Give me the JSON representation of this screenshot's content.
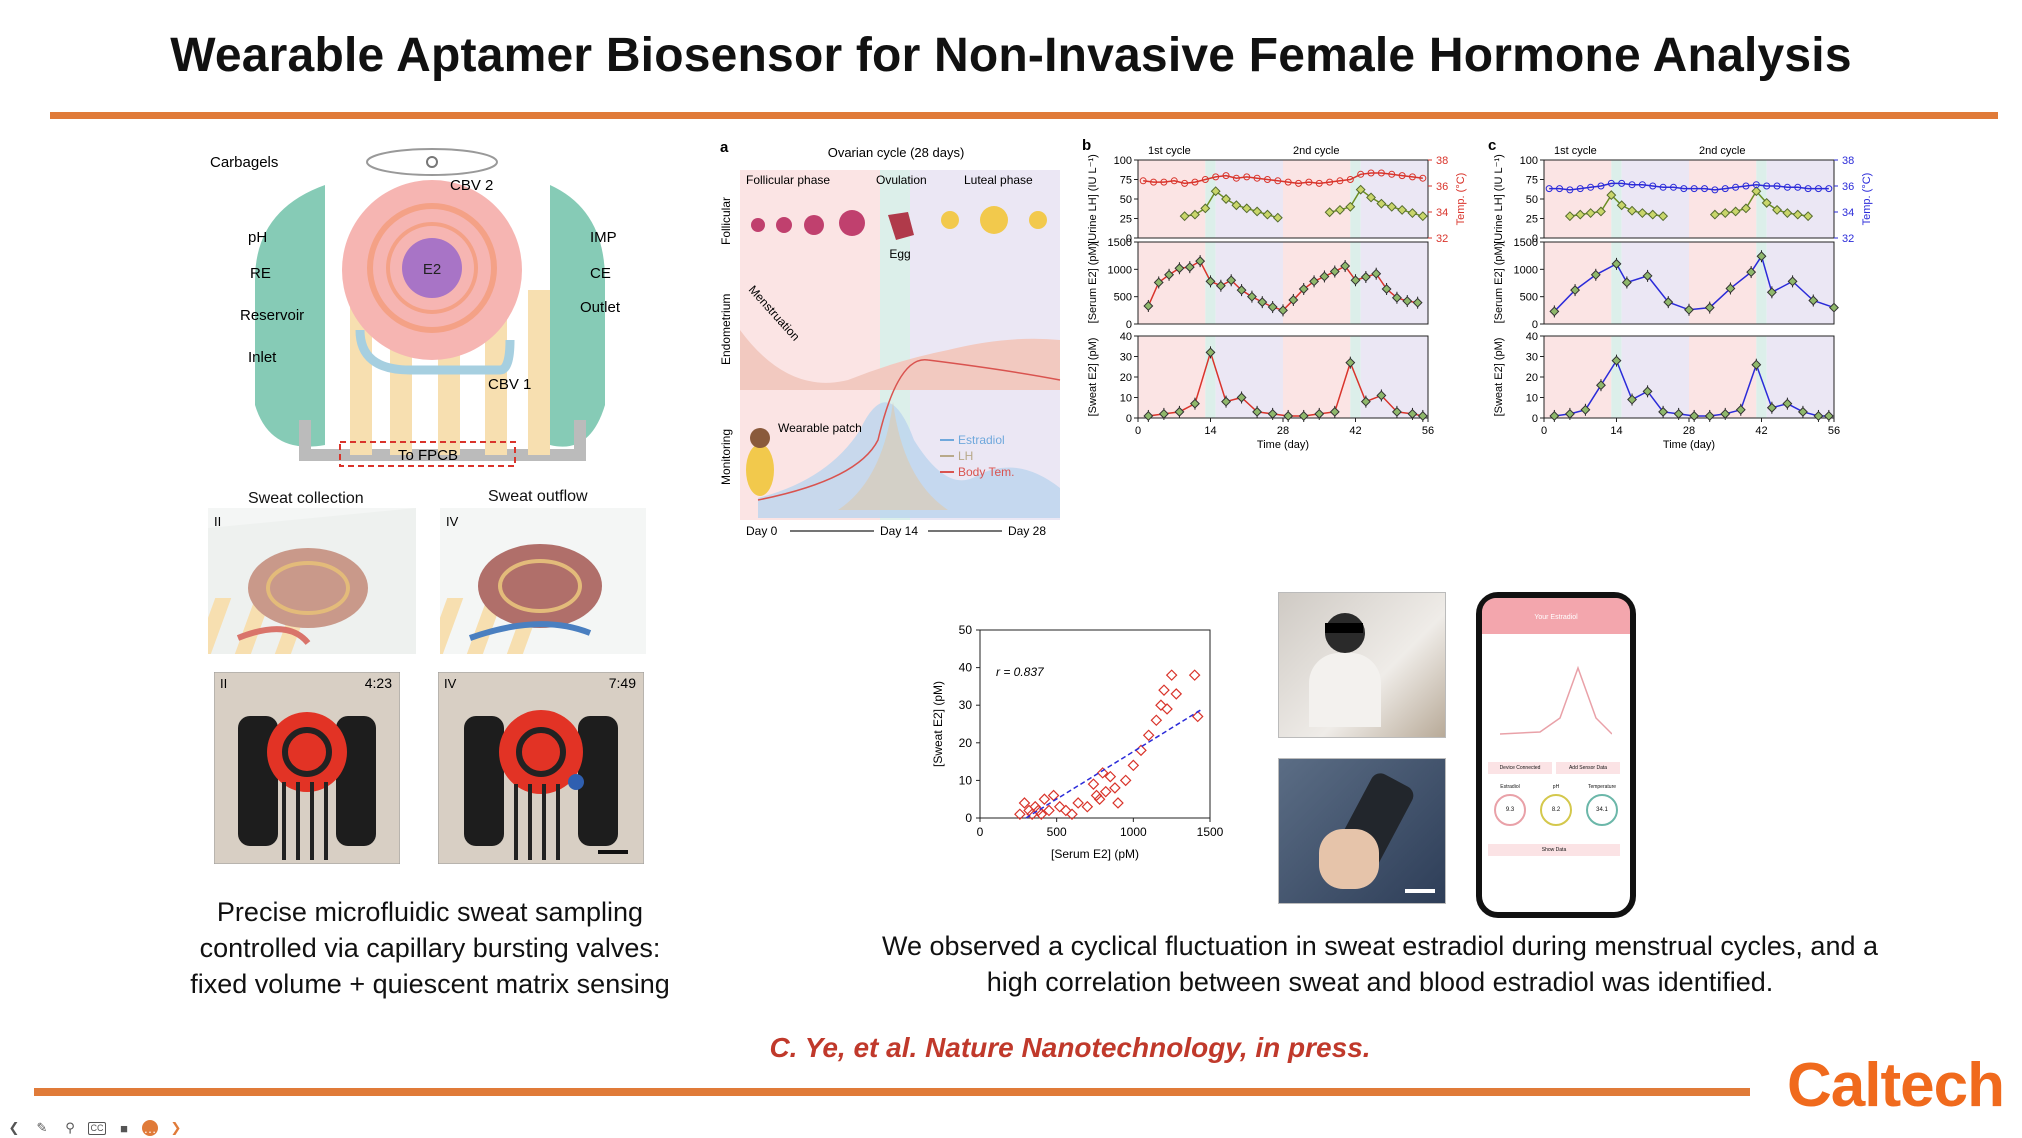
{
  "slide": {
    "title": "Wearable Aptamer Biosensor for Non-Invasive Female Hormone Analysis",
    "caption_left": [
      "Precise microfluidic sweat sampling",
      "controlled via capillary bursting valves:",
      "fixed volume + quiescent matrix sensing"
    ],
    "caption_right": [
      "We observed a cyclical fluctuation in sweat estradiol during menstrual cycles, and a",
      "high correlation between sweat and blood estradiol was identified."
    ],
    "citation": "C. Ye, et al. Nature Nanotechnology, in press.",
    "logo": "Caltech"
  },
  "device_diagram": {
    "labels": {
      "carbagels": "Carbagels",
      "cbv2": "CBV 2",
      "ph": "pH",
      "imp": "IMP",
      "re": "RE",
      "e2": "E2",
      "ce": "CE",
      "reservoir": "Reservoir",
      "outlet": "Outlet",
      "inlet": "Inlet",
      "cbv1": "CBV 1",
      "to_fpcb": "To FPCB"
    },
    "sweat_collection": "Sweat collection",
    "sweat_outflow": "Sweat outflow",
    "stage_ii": "II",
    "stage_iv": "IV",
    "photo_time_ii": "4:23",
    "photo_time_iv": "7:49"
  },
  "panel_a": {
    "letter": "a",
    "title": "Ovarian cycle (28 days)",
    "phases": [
      "Follicular phase",
      "Ovulation",
      "Luteal phase"
    ],
    "row_labels": [
      "Follicular",
      "Endometrium",
      "Monitoring"
    ],
    "egg": "Egg",
    "menstruation": "Menstruation",
    "wearable_patch": "Wearable patch",
    "legend": [
      {
        "name": "Estradiol",
        "color": "#6fa8dc"
      },
      {
        "name": "LH",
        "color": "#b8a98a"
      },
      {
        "name": "Body Tem.",
        "color": "#d9534f"
      }
    ],
    "days": [
      "Day 0",
      "Day 14",
      "Day 28"
    ]
  },
  "panel_b_letter": "b",
  "panel_c_letter": "c",
  "cycle_labels": [
    "1st cycle",
    "2nd cycle"
  ],
  "time_axis_label": "Time (day)",
  "time_ticks": [
    0,
    14,
    28,
    42,
    56
  ],
  "lh_axis": {
    "label": "[Urine LH] (IU L⁻¹)",
    "ticks": [
      0,
      25,
      50,
      75,
      100
    ]
  },
  "temp_axis": {
    "label": "Temp. (°C)",
    "ticks": [
      32,
      34,
      36,
      38
    ]
  },
  "serum_axis": {
    "label": "[Serum E2] (pM)",
    "ticks": [
      0,
      500,
      1000,
      1500
    ]
  },
  "sweat_axis": {
    "label": "[Sweat E2] (pM)",
    "ticks": [
      0,
      10,
      20,
      30,
      40
    ]
  },
  "colors": {
    "accent": "#e07b39",
    "red_series": "#d9342b",
    "blue_series": "#2b2bd9",
    "green_marker": "#6b8e23"
  },
  "chart_data": [
    {
      "type": "line",
      "panel": "b-top",
      "x": [
        1,
        3,
        5,
        7,
        9,
        11,
        13,
        15,
        17,
        19,
        21,
        23,
        25,
        27,
        29,
        31,
        33,
        35,
        37,
        39,
        41,
        43,
        45,
        47,
        49,
        51,
        53,
        55
      ],
      "series": [
        {
          "name": "[Urine LH]",
          "values": [
            null,
            null,
            null,
            null,
            28,
            30,
            38,
            60,
            50,
            42,
            38,
            34,
            30,
            26,
            null,
            null,
            null,
            null,
            33,
            36,
            40,
            62,
            52,
            44,
            40,
            36,
            32,
            28
          ]
        },
        {
          "name": "Temp.",
          "values": [
            36.4,
            36.3,
            36.3,
            36.4,
            36.2,
            36.3,
            36.5,
            36.7,
            36.8,
            36.6,
            36.7,
            36.6,
            36.5,
            36.4,
            36.3,
            36.2,
            36.3,
            36.2,
            36.3,
            36.4,
            36.5,
            36.9,
            37.0,
            37.0,
            36.9,
            36.8,
            36.7,
            36.6
          ]
        }
      ],
      "ylim": [
        0,
        100
      ]
    },
    {
      "type": "line",
      "panel": "b-middle",
      "x": [
        2,
        4,
        6,
        8,
        10,
        12,
        14,
        16,
        18,
        20,
        22,
        24,
        26,
        28,
        30,
        32,
        34,
        36,
        38,
        40,
        42,
        44,
        46,
        48,
        50,
        52,
        54
      ],
      "series": [
        {
          "name": "[Serum E2]",
          "values": [
            330,
            760,
            900,
            1020,
            1040,
            1150,
            780,
            700,
            800,
            620,
            500,
            400,
            310,
            250,
            440,
            640,
            780,
            870,
            960,
            1060,
            800,
            860,
            920,
            640,
            480,
            420,
            390
          ]
        }
      ],
      "ylim": [
        0,
        1500
      ]
    },
    {
      "type": "line",
      "panel": "b-bottom",
      "x": [
        2,
        5,
        8,
        11,
        14,
        17,
        20,
        23,
        26,
        29,
        32,
        35,
        38,
        41,
        44,
        47,
        50,
        53,
        55
      ],
      "series": [
        {
          "name": "[Sweat E2]",
          "values": [
            1,
            2,
            3,
            7,
            32,
            8,
            10,
            3,
            2,
            1,
            1,
            2,
            3,
            27,
            8,
            11,
            3,
            2,
            1
          ]
        }
      ],
      "ylim": [
        0,
        40
      ]
    },
    {
      "type": "line",
      "panel": "c-top",
      "x": [
        1,
        3,
        5,
        7,
        9,
        11,
        13,
        15,
        17,
        19,
        21,
        23,
        25,
        27,
        29,
        31,
        33,
        35,
        37,
        39,
        41,
        43,
        45,
        47,
        49,
        51,
        53,
        55
      ],
      "series": [
        {
          "name": "[Urine LH]",
          "values": [
            null,
            null,
            28,
            30,
            32,
            34,
            55,
            42,
            35,
            32,
            30,
            28,
            null,
            null,
            null,
            null,
            30,
            32,
            34,
            38,
            60,
            45,
            36,
            32,
            30,
            28,
            null,
            null
          ]
        },
        {
          "name": "Temp.",
          "values": [
            35.8,
            35.8,
            35.7,
            35.8,
            35.9,
            36.0,
            36.2,
            36.2,
            36.1,
            36.1,
            36.0,
            35.9,
            35.9,
            35.8,
            35.8,
            35.8,
            35.7,
            35.8,
            35.9,
            36.0,
            36.1,
            36.0,
            36.0,
            35.9,
            35.9,
            35.8,
            35.8,
            35.8
          ]
        }
      ],
      "ylim": [
        0,
        100
      ]
    },
    {
      "type": "line",
      "panel": "c-middle",
      "x": [
        2,
        6,
        10,
        14,
        16,
        20,
        24,
        28,
        32,
        36,
        40,
        42,
        44,
        48,
        52,
        56
      ],
      "series": [
        {
          "name": "[Serum E2]",
          "values": [
            230,
            620,
            900,
            1100,
            760,
            880,
            400,
            260,
            300,
            650,
            950,
            1240,
            580,
            780,
            430,
            300
          ]
        }
      ],
      "ylim": [
        0,
        1500
      ]
    },
    {
      "type": "line",
      "panel": "c-bottom",
      "x": [
        2,
        5,
        8,
        11,
        14,
        17,
        20,
        23,
        26,
        29,
        32,
        35,
        38,
        41,
        44,
        47,
        50,
        53,
        55
      ],
      "series": [
        {
          "name": "[Sweat E2]",
          "values": [
            1,
            2,
            4,
            16,
            28,
            9,
            13,
            3,
            2,
            1,
            1,
            2,
            4,
            26,
            5,
            7,
            3,
            1,
            1
          ]
        }
      ],
      "ylim": [
        0,
        40
      ]
    },
    {
      "type": "scatter",
      "panel": "correlation",
      "annotation": "r = 0.837",
      "xlabel": "[Serum E2] (pM)",
      "ylabel": "[Sweat E2] (pM)",
      "xlim": [
        0,
        1500
      ],
      "ylim": [
        0,
        50
      ],
      "xticks": [
        0,
        500,
        1000,
        1500
      ],
      "yticks": [
        0,
        10,
        20,
        30,
        40,
        50
      ],
      "x": [
        260,
        290,
        320,
        340,
        360,
        380,
        400,
        420,
        450,
        480,
        520,
        560,
        600,
        640,
        700,
        740,
        760,
        780,
        800,
        820,
        850,
        880,
        900,
        950,
        1000,
        1050,
        1100,
        1150,
        1180,
        1200,
        1220,
        1250,
        1280,
        1400,
        1420
      ],
      "y": [
        1,
        4,
        2,
        1,
        3,
        2,
        1,
        5,
        2,
        6,
        3,
        2,
        1,
        4,
        3,
        9,
        6,
        5,
        12,
        7,
        11,
        8,
        4,
        10,
        14,
        18,
        22,
        26,
        30,
        34,
        29,
        38,
        33,
        38,
        27
      ],
      "fit_line": {
        "x": [
          300,
          1450
        ],
        "y": [
          0,
          29
        ]
      }
    }
  ],
  "phone_app": {
    "title": "Your Estradiol",
    "buttons": [
      "Device Connected",
      "Add Sensor Data",
      "Show Data"
    ],
    "readouts": [
      {
        "label": "Estradiol",
        "value": "9.3"
      },
      {
        "label": "pH",
        "value": "8.2"
      },
      {
        "label": "Temperature",
        "value": "34.1"
      }
    ]
  },
  "toolbar": {
    "items": [
      "back-icon",
      "pen-icon",
      "zoom-icon",
      "captions-icon",
      "camera-icon",
      "more-icon",
      "forward-icon"
    ]
  }
}
